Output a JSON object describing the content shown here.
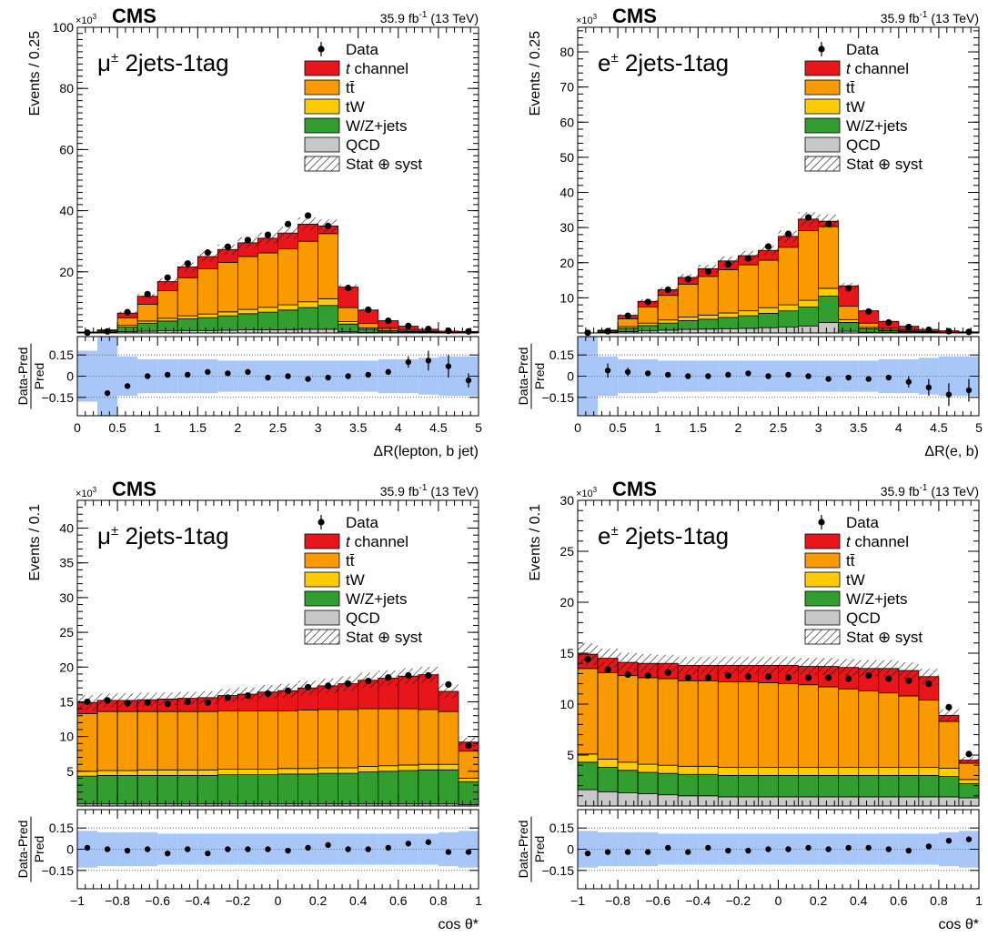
{
  "figure": {
    "legend": [
      {
        "key": "data",
        "label": "Data",
        "color": "#000000"
      },
      {
        "key": "tch",
        "label_italic": "t",
        "label": " channel",
        "color": "#e8161b"
      },
      {
        "key": "ttbar",
        "label": "tt̄",
        "color": "#f99a00"
      },
      {
        "key": "tw",
        "label": "tW",
        "color": "#fecc02"
      },
      {
        "key": "wz",
        "label": "W/Z+jets",
        "color": "#339e30"
      },
      {
        "key": "qcd",
        "label": "QCD",
        "color": "#c8c8c8"
      },
      {
        "key": "unc",
        "label": "Stat ⊕ syst",
        "color": "#000000"
      }
    ],
    "ratio_ylabel_top": "Data-Pred",
    "ratio_ylabel_bottom": "Pred",
    "ratio_band_color": "#a9c6f9",
    "ratio_ticks": [
      "0.15",
      "0",
      "−0.15"
    ]
  },
  "chart_data": [
    {
      "type": "bar",
      "experiment": "CMS",
      "lumi": "35.9 fb",
      "lumi_sup": "-1",
      "lumi_suffix": " (13 TeV)",
      "multiplier": "×10",
      "multiplier_exp": "3",
      "channel_label": "μ",
      "channel_sup": "±",
      "channel_suffix": " 2jets-1tag",
      "xlabel": "ΔR(lepton, b jet)",
      "ylabel": "Events / 0.25",
      "xlim": [
        0,
        5
      ],
      "ylim": [
        0,
        100
      ],
      "xticks": [
        "0",
        "0.5",
        "1",
        "1.5",
        "2",
        "2.5",
        "3",
        "3.5",
        "4",
        "4.5",
        "5"
      ],
      "yticks": [
        "20",
        "40",
        "60",
        "80",
        "100"
      ],
      "bin_edges": [
        0,
        0.25,
        0.5,
        0.75,
        1.0,
        1.25,
        1.5,
        1.75,
        2.0,
        2.25,
        2.5,
        2.75,
        3.0,
        3.25,
        3.5,
        3.75,
        4.0,
        4.25,
        4.5,
        4.75,
        5.0
      ],
      "stack": [
        {
          "key": "qcd",
          "values": [
            0,
            0.1,
            0.4,
            0.6,
            0.7,
            0.8,
            0.8,
            0.9,
            1.0,
            1.0,
            1.1,
            1.2,
            1.2,
            0.4,
            0.2,
            0.1,
            0.1,
            0,
            0,
            0
          ]
        },
        {
          "key": "wz",
          "values": [
            0.1,
            0.2,
            1.6,
            2.6,
            3.2,
            3.8,
            4.2,
            4.7,
            5.3,
            5.8,
            6.4,
            7.1,
            7.8,
            2.5,
            1.0,
            0.5,
            0.3,
            0.2,
            0.1,
            0.1
          ]
        },
        {
          "key": "tw",
          "values": [
            0,
            0.1,
            0.5,
            0.7,
            0.9,
            1.0,
            1.2,
            1.3,
            1.4,
            1.6,
            1.7,
            1.9,
            2.2,
            0.8,
            0.4,
            0.2,
            0.1,
            0.1,
            0,
            0
          ]
        },
        {
          "key": "ttbar",
          "values": [
            0.1,
            0.4,
            2.5,
            5.5,
            9.0,
            12.5,
            14.8,
            16.2,
            17.3,
            17.8,
            18.3,
            19.8,
            21.3,
            4.6,
            1.5,
            0.7,
            0.4,
            0.2,
            0.1,
            0.1
          ]
        },
        {
          "key": "tch",
          "values": [
            0.1,
            0.2,
            1.5,
            2.6,
            3.0,
            3.5,
            4.0,
            4.2,
            4.5,
            4.8,
            5.2,
            5.6,
            2.5,
            6.7,
            4.4,
            2.5,
            1.3,
            0.7,
            0.4,
            0.3
          ]
        }
      ],
      "data": [
        0.1,
        0.5,
        6.8,
        12.7,
        18.1,
        22.7,
        26.3,
        28.2,
        30.4,
        32.1,
        35.6,
        38.4,
        35.0,
        14.7,
        7.6,
        4.0,
        2.3,
        1.3,
        0.7,
        0.5
      ],
      "ratio": [
        0,
        -0.12,
        -0.07,
        0,
        0.01,
        0.01,
        0.03,
        0.02,
        0.03,
        -0.01,
        0,
        -0.02,
        -0.01,
        0,
        0.01,
        0.03,
        0.1,
        0.11,
        0.07,
        -0.03
      ],
      "ratio_err": [
        0,
        0,
        0,
        0,
        0,
        0,
        0,
        0,
        0,
        0,
        0,
        0,
        0,
        0,
        0,
        0,
        0.04,
        0.07,
        0.08,
        0.05
      ],
      "band_rel": [
        0.18,
        0.33,
        0.14,
        0.12,
        0.12,
        0.12,
        0.12,
        0.11,
        0.11,
        0.11,
        0.11,
        0.11,
        0.11,
        0.11,
        0.11,
        0.12,
        0.12,
        0.13,
        0.14,
        0.14
      ]
    },
    {
      "type": "bar",
      "experiment": "CMS",
      "lumi": "35.9 fb",
      "lumi_sup": "-1",
      "lumi_suffix": " (13 TeV)",
      "multiplier": "×10",
      "multiplier_exp": "3",
      "channel_label": "e",
      "channel_sup": "±",
      "channel_suffix": " 2jets-1tag",
      "xlabel": "ΔR(e, b)",
      "ylabel": "Events / 0.25",
      "xlim": [
        0,
        5
      ],
      "ylim": [
        0,
        87
      ],
      "xticks": [
        "0",
        "0.5",
        "1",
        "1.5",
        "2",
        "2.5",
        "3",
        "3.5",
        "4",
        "4.5",
        "5"
      ],
      "yticks": [
        "10",
        "20",
        "30",
        "40",
        "50",
        "60",
        "70",
        "80"
      ],
      "bin_edges": [
        0,
        0.25,
        0.5,
        0.75,
        1.0,
        1.25,
        1.5,
        1.75,
        2.0,
        2.25,
        2.5,
        2.75,
        3.0,
        3.25,
        3.5,
        3.75,
        4.0,
        4.25,
        4.5,
        4.75,
        5.0
      ],
      "stack": [
        {
          "key": "qcd",
          "values": [
            0,
            0.1,
            0.4,
            0.6,
            0.8,
            1.0,
            1.1,
            1.2,
            1.3,
            1.5,
            1.7,
            2.0,
            3.0,
            0.5,
            0.2,
            0.1,
            0.1,
            0,
            0,
            0
          ]
        },
        {
          "key": "wz",
          "values": [
            0,
            0.1,
            0.9,
            1.5,
            2.0,
            2.5,
            2.8,
            3.2,
            3.6,
            4.1,
            4.6,
            5.4,
            7.5,
            2.5,
            1.0,
            0.5,
            0.3,
            0.1,
            0.1,
            0
          ]
        },
        {
          "key": "tw",
          "values": [
            0,
            0.1,
            0.5,
            0.7,
            0.9,
            1.0,
            1.2,
            1.3,
            1.4,
            1.6,
            1.7,
            1.9,
            2.2,
            0.8,
            0.4,
            0.2,
            0.1,
            0.1,
            0,
            0
          ]
        },
        {
          "key": "ttbar",
          "values": [
            0,
            0.3,
            2.2,
            4.6,
            7.0,
            9.4,
            11.0,
            12.3,
            13.1,
            13.5,
            16.4,
            19.8,
            17.6,
            3.8,
            1.2,
            0.5,
            0.3,
            0.2,
            0.1,
            0.1
          ]
        },
        {
          "key": "tch",
          "values": [
            0,
            0.2,
            1.0,
            1.6,
            1.6,
            1.9,
            2.2,
            2.5,
            2.6,
            2.8,
            3.1,
            3.3,
            1.5,
            5.8,
            3.5,
            2.0,
            1.1,
            0.6,
            0.4,
            0.2
          ]
        }
      ],
      "data": [
        0.05,
        0.5,
        4.9,
        8.8,
        12.3,
        15.3,
        17.5,
        19.5,
        21.2,
        24.6,
        28.2,
        32.9,
        31.0,
        12.7,
        6.1,
        3.0,
        1.7,
        0.9,
        0.5,
        0.3
      ],
      "ratio": [
        0,
        0.04,
        0.03,
        0.02,
        0.01,
        0,
        0,
        0.01,
        0.02,
        0,
        0.01,
        0,
        -0.02,
        -0.01,
        -0.02,
        -0.01,
        -0.04,
        -0.08,
        -0.13,
        -0.1
      ],
      "ratio_err": [
        0,
        0.05,
        0.03,
        0,
        0,
        0,
        0,
        0,
        0,
        0,
        0,
        0,
        0,
        0,
        0,
        0,
        0.04,
        0.06,
        0.08,
        0.08
      ],
      "band_rel": [
        0.33,
        0.14,
        0.12,
        0.12,
        0.11,
        0.11,
        0.11,
        0.11,
        0.11,
        0.11,
        0.11,
        0.11,
        0.11,
        0.11,
        0.11,
        0.12,
        0.12,
        0.13,
        0.14,
        0.14
      ]
    },
    {
      "type": "bar",
      "experiment": "CMS",
      "lumi": "35.9 fb",
      "lumi_sup": "-1",
      "lumi_suffix": " (13 TeV)",
      "multiplier": "×10",
      "multiplier_exp": "3",
      "channel_label": "μ",
      "channel_sup": "±",
      "channel_suffix": " 2jets-1tag",
      "xlabel": "cos θ*",
      "ylabel": "Events / 0.1",
      "xlim": [
        -1,
        1
      ],
      "ylim": [
        0,
        44
      ],
      "xticks": [
        "−1",
        "−0.8",
        "−0.6",
        "−0.4",
        "−0.2",
        "0",
        "0.2",
        "0.4",
        "0.6",
        "0.8",
        "1"
      ],
      "yticks": [
        "5",
        "10",
        "15",
        "20",
        "25",
        "30",
        "35",
        "40"
      ],
      "bin_edges": [
        -1.0,
        -0.9,
        -0.8,
        -0.7,
        -0.6,
        -0.5,
        -0.4,
        -0.3,
        -0.2,
        -0.1,
        0.0,
        0.1,
        0.2,
        0.3,
        0.4,
        0.5,
        0.6,
        0.7,
        0.8,
        0.9,
        1.0
      ],
      "stack": [
        {
          "key": "qcd",
          "values": [
            0.3,
            0.3,
            0.3,
            0.3,
            0.3,
            0.3,
            0.3,
            0.3,
            0.3,
            0.3,
            0.3,
            0.3,
            0.3,
            0.3,
            0.3,
            0.3,
            0.3,
            0.3,
            0.3,
            0.2
          ]
        },
        {
          "key": "wz",
          "values": [
            4.0,
            4.1,
            4.1,
            4.1,
            4.1,
            4.1,
            4.1,
            4.2,
            4.2,
            4.2,
            4.3,
            4.3,
            4.4,
            4.4,
            4.6,
            4.7,
            4.8,
            4.9,
            4.9,
            3.3
          ]
        },
        {
          "key": "tw",
          "values": [
            0.7,
            0.7,
            0.7,
            0.8,
            0.8,
            0.8,
            0.8,
            0.8,
            0.8,
            0.8,
            0.8,
            0.8,
            0.8,
            0.8,
            0.8,
            0.8,
            0.8,
            0.8,
            0.8,
            0.5
          ]
        },
        {
          "key": "ttbar",
          "values": [
            8.3,
            8.5,
            8.5,
            8.4,
            8.4,
            8.4,
            8.4,
            8.4,
            8.4,
            8.4,
            8.3,
            8.4,
            8.4,
            8.4,
            8.3,
            8.2,
            8.1,
            7.9,
            7.6,
            3.9
          ]
        },
        {
          "key": "tch",
          "values": [
            1.6,
            1.6,
            1.6,
            1.7,
            1.8,
            1.9,
            2.0,
            2.2,
            2.4,
            2.7,
            2.9,
            3.2,
            3.4,
            3.7,
            4.1,
            4.4,
            4.7,
            5.0,
            2.9,
            1.3
          ]
        }
      ],
      "data": [
        15.0,
        15.2,
        14.8,
        14.9,
        14.7,
        15.0,
        14.9,
        15.6,
        15.9,
        16.2,
        16.6,
        17.1,
        17.3,
        17.6,
        18.0,
        18.5,
        18.8,
        18.8,
        17.5,
        8.7
      ],
      "ratio": [
        0.01,
        0,
        -0.01,
        0,
        -0.03,
        0,
        -0.03,
        0,
        0,
        0,
        -0.01,
        0.01,
        0.03,
        0,
        0,
        0.01,
        0.04,
        0.05,
        -0.02,
        -0.02
      ],
      "ratio_err": [
        0,
        0,
        0,
        0,
        0,
        0,
        0,
        0,
        0,
        0,
        0,
        0,
        0,
        0,
        0,
        0,
        0,
        0,
        0,
        0
      ],
      "band_rel": [
        0.13,
        0.12,
        0.12,
        0.12,
        0.11,
        0.11,
        0.11,
        0.11,
        0.11,
        0.11,
        0.11,
        0.11,
        0.11,
        0.11,
        0.11,
        0.11,
        0.11,
        0.11,
        0.12,
        0.13
      ]
    },
    {
      "type": "bar",
      "experiment": "CMS",
      "lumi": "35.9 fb",
      "lumi_sup": "-1",
      "lumi_suffix": " (13 TeV)",
      "multiplier": "×10",
      "multiplier_exp": "3",
      "channel_label": "e",
      "channel_sup": "±",
      "channel_suffix": " 2jets-1tag",
      "xlabel": "cos θ*",
      "ylabel": "Events / 0.1",
      "xlim": [
        -1,
        1
      ],
      "ylim": [
        0,
        30
      ],
      "xticks": [
        "−1",
        "−0.8",
        "−0.6",
        "−0.4",
        "−0.2",
        "0",
        "0.2",
        "0.4",
        "0.6",
        "0.8",
        "1"
      ],
      "yticks": [
        "5",
        "10",
        "15",
        "20",
        "25",
        "30"
      ],
      "bin_edges": [
        -1.0,
        -0.9,
        -0.8,
        -0.7,
        -0.6,
        -0.5,
        -0.4,
        -0.3,
        -0.2,
        -0.1,
        0.0,
        0.1,
        0.2,
        0.3,
        0.4,
        0.5,
        0.6,
        0.7,
        0.8,
        0.9,
        1.0
      ],
      "stack": [
        {
          "key": "qcd",
          "values": [
            1.6,
            1.4,
            1.3,
            1.2,
            1.1,
            1.0,
            1.0,
            0.9,
            0.9,
            0.9,
            0.9,
            0.9,
            0.9,
            0.9,
            0.9,
            0.9,
            0.9,
            0.9,
            0.9,
            0.8
          ]
        },
        {
          "key": "wz",
          "values": [
            2.7,
            2.4,
            2.2,
            2.1,
            2.1,
            2.1,
            2.1,
            2.1,
            2.1,
            2.1,
            2.1,
            2.1,
            2.1,
            2.1,
            2.1,
            2.1,
            2.1,
            2.1,
            2.0,
            1.4
          ]
        },
        {
          "key": "tw",
          "values": [
            0.8,
            0.8,
            0.8,
            0.8,
            0.8,
            0.8,
            0.8,
            0.8,
            0.8,
            0.8,
            0.8,
            0.8,
            0.8,
            0.8,
            0.8,
            0.8,
            0.8,
            0.8,
            0.8,
            0.4
          ]
        },
        {
          "key": "ttbar",
          "values": [
            8.4,
            8.5,
            8.5,
            8.5,
            8.5,
            8.4,
            8.4,
            8.4,
            8.4,
            8.3,
            8.2,
            8.1,
            7.9,
            7.7,
            7.5,
            7.3,
            7.0,
            6.6,
            4.6,
            1.6
          ]
        },
        {
          "key": "tch",
          "values": [
            1.4,
            1.4,
            1.3,
            1.4,
            1.5,
            1.5,
            1.5,
            1.6,
            1.6,
            1.7,
            1.8,
            1.8,
            2.0,
            2.1,
            2.2,
            2.4,
            2.5,
            2.3,
            0.6,
            0.3
          ]
        }
      ],
      "data": [
        14.4,
        13.4,
        12.9,
        12.8,
        13.1,
        12.6,
        12.6,
        12.8,
        12.7,
        12.7,
        12.6,
        12.6,
        12.6,
        12.5,
        12.8,
        12.5,
        12.3,
        12.0,
        9.7,
        5.1
      ],
      "ratio": [
        -0.03,
        -0.02,
        -0.02,
        -0.02,
        0.01,
        -0.02,
        0.01,
        -0.01,
        -0.01,
        0,
        0,
        0.01,
        0,
        0.01,
        0.01,
        0,
        -0.01,
        0.02,
        0.06,
        0.07
      ],
      "ratio_err": [
        0,
        0,
        0,
        0,
        0,
        0,
        0,
        0,
        0,
        0,
        0,
        0,
        0,
        0,
        0,
        0,
        0,
        0,
        0,
        0
      ],
      "band_rel": [
        0.13,
        0.12,
        0.12,
        0.12,
        0.11,
        0.11,
        0.11,
        0.11,
        0.11,
        0.11,
        0.11,
        0.11,
        0.11,
        0.11,
        0.11,
        0.11,
        0.11,
        0.11,
        0.12,
        0.13
      ]
    }
  ]
}
